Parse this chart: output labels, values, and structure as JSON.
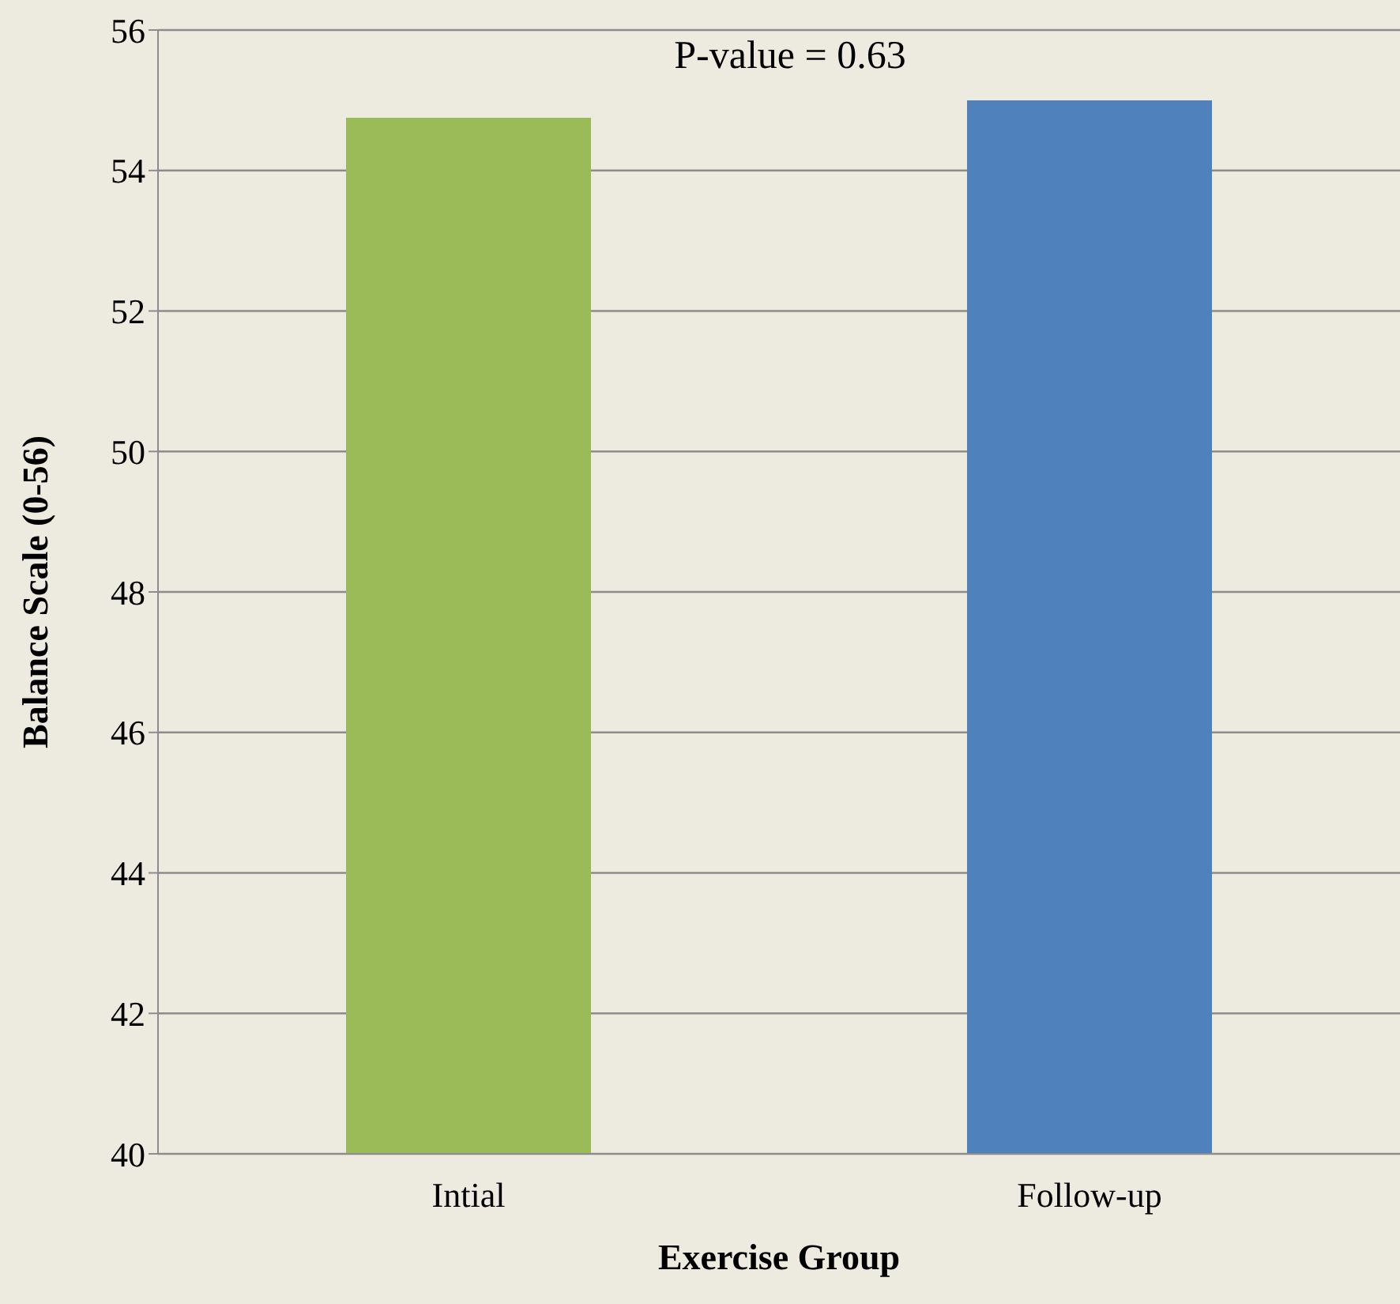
{
  "chart_data": {
    "type": "bar",
    "xlabel": "Exercise Group",
    "ylabel": "Balance Scale (0-56)",
    "categories": [
      "Intial",
      "Follow-up"
    ],
    "values": [
      54.75,
      55.0
    ],
    "colors": [
      "#9bbb59",
      "#4f81bd"
    ],
    "ylim": [
      40,
      56
    ],
    "yticks": [
      40,
      42,
      44,
      46,
      48,
      50,
      52,
      54,
      56
    ],
    "grid": "y",
    "annotations": [
      "P-value = 0.63"
    ]
  }
}
